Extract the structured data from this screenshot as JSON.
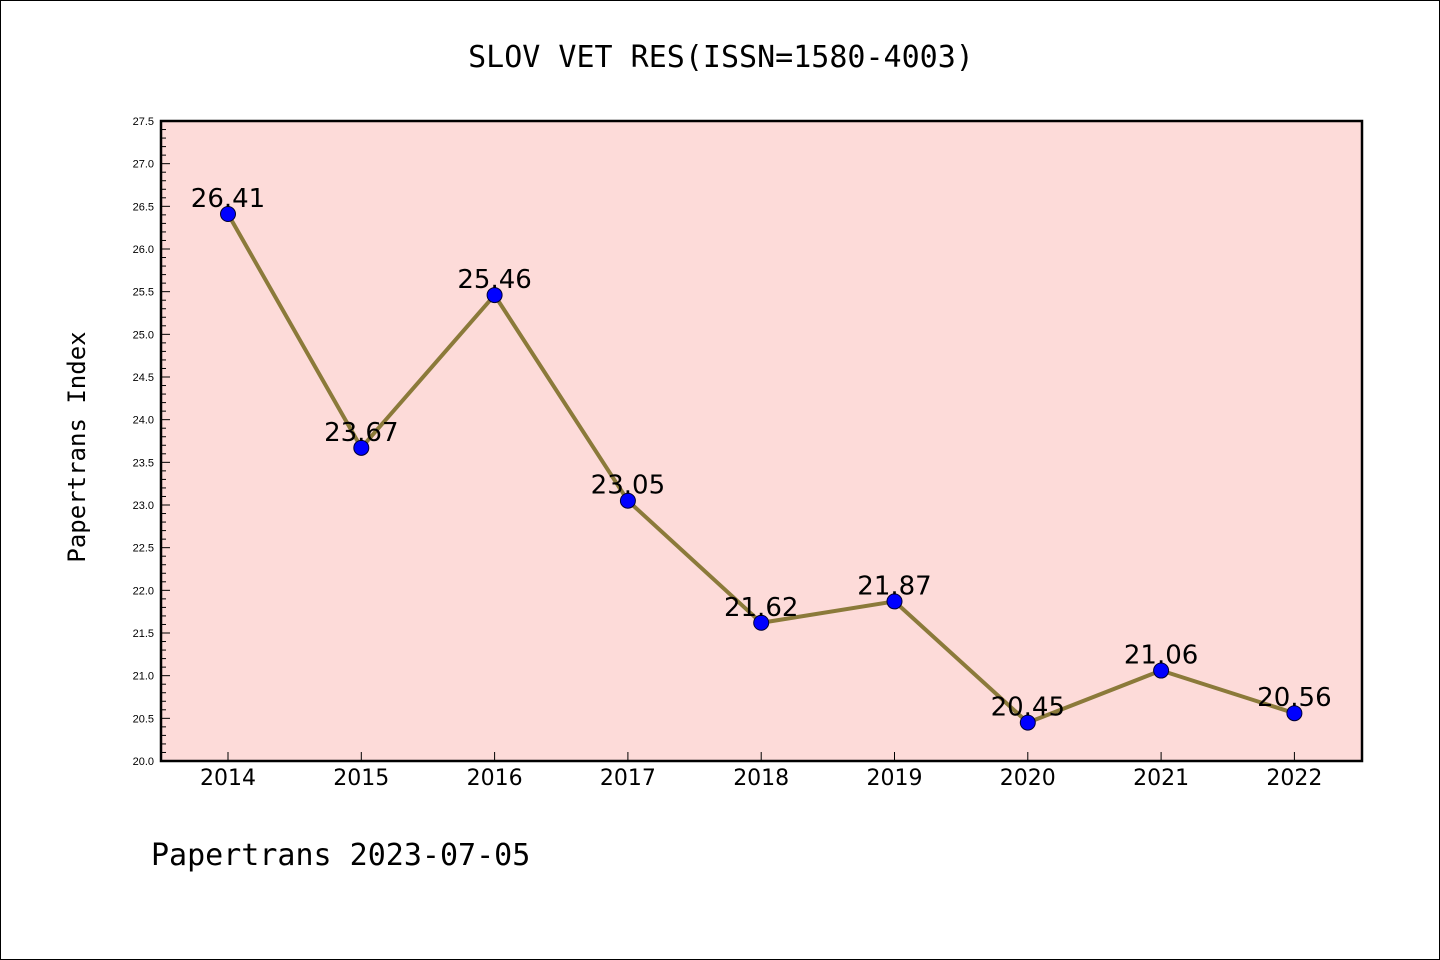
{
  "chart_data": {
    "type": "line",
    "title": "SLOV VET RES(ISSN=1580-4003)",
    "xlabel": "",
    "ylabel": "Papertrans Index",
    "categories": [
      "2014",
      "2015",
      "2016",
      "2017",
      "2018",
      "2019",
      "2020",
      "2021",
      "2022"
    ],
    "values": [
      26.41,
      23.67,
      25.46,
      23.05,
      21.62,
      21.87,
      20.45,
      21.06,
      20.56
    ],
    "data_labels": [
      "26.41",
      "23.67",
      "25.46",
      "23.05",
      "21.62",
      "21.87",
      "20.45",
      "21.06",
      "20.56"
    ],
    "ylim": [
      20.0,
      27.5
    ],
    "yticks": [
      "20.0",
      "20.5",
      "21.0",
      "21.5",
      "22.0",
      "22.5",
      "23.0",
      "23.5",
      "24.0",
      "24.5",
      "25.0",
      "25.5",
      "26.0",
      "26.5",
      "27.0",
      "27.5"
    ],
    "grid": false,
    "legend": "none",
    "colors": {
      "plot_background": "#fddbd9",
      "line": "#8b7a3a",
      "marker": "#0000ff"
    }
  },
  "footer": "Papertrans 2023-07-05"
}
